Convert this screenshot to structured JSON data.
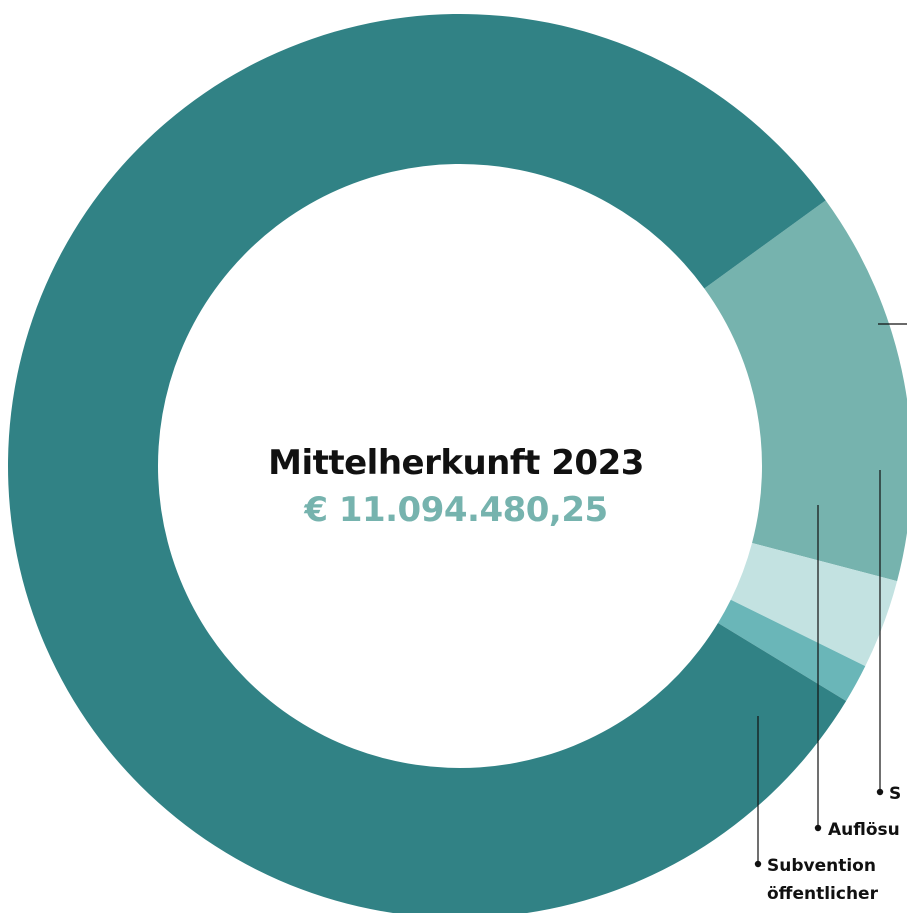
{
  "chart_data": {
    "type": "donut",
    "title": "Mittelherkunft 2023",
    "total_label": "€ 11.094.480,25",
    "slices": [
      {
        "name": "",
        "percent": 14.1,
        "color": "#76b3ae"
      },
      {
        "name": "",
        "percent": 3.2,
        "color": "#c3e2e1"
      },
      {
        "name": "",
        "percent": 1.4,
        "color": "#6ab6b8"
      },
      {
        "name": "",
        "percent": 81.3,
        "color": "#318285"
      }
    ],
    "labels": [
      {
        "text": "S",
        "slice": 1
      },
      {
        "text": "Auflösu",
        "slice": 2
      },
      {
        "text": "Subvention",
        "line2": "öffentlicher",
        "slice": 3
      }
    ],
    "colors": {
      "title": "#111111",
      "total": "#76b3ae",
      "leader": "#111111"
    }
  }
}
